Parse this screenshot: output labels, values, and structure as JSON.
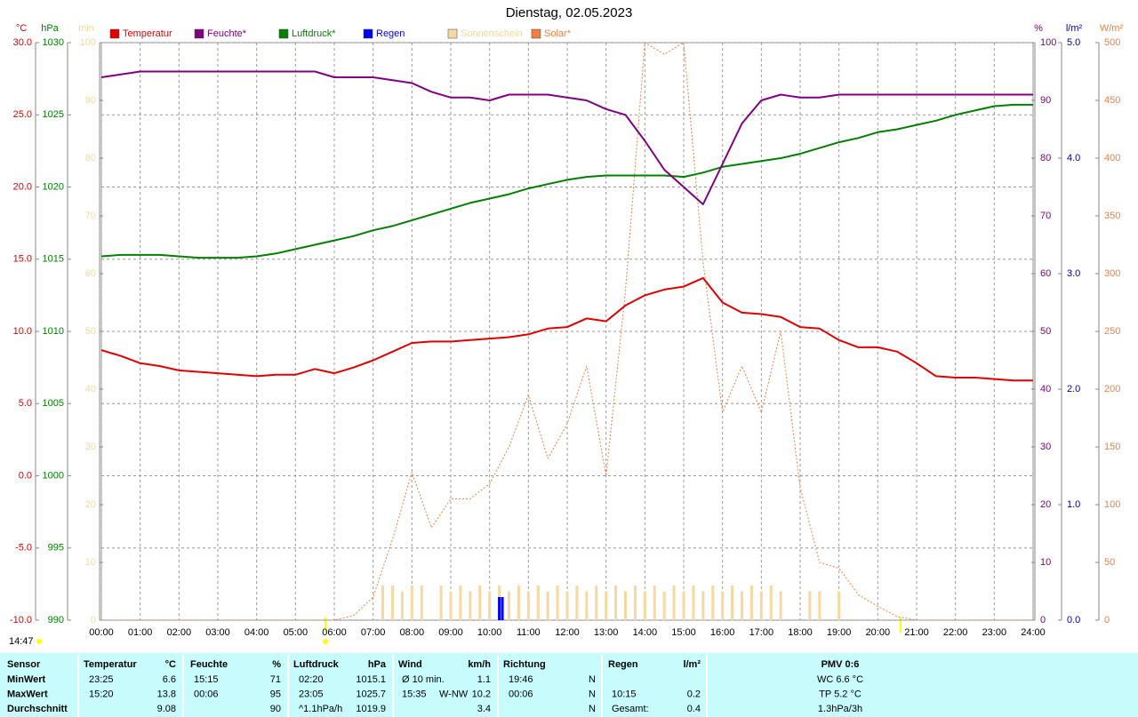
{
  "chart_data": {
    "type": "line",
    "title": "Dienstag, 02.05.2023",
    "x": [
      0,
      0.5,
      1,
      1.5,
      2,
      2.5,
      3,
      3.5,
      4,
      4.5,
      5,
      5.5,
      6,
      6.5,
      7,
      7.5,
      8,
      8.5,
      9,
      9.5,
      10,
      10.5,
      11,
      11.5,
      12,
      12.5,
      13,
      13.5,
      14,
      14.5,
      15,
      15.5,
      16,
      16.5,
      17,
      17.5,
      18,
      18.5,
      19,
      19.5,
      20,
      20.5,
      21,
      21.5,
      22,
      22.5,
      23,
      23.5,
      24
    ],
    "xlim": [
      0,
      24
    ],
    "xticks": [
      {
        "value": 0,
        "label": "00:00"
      },
      {
        "value": 1,
        "label": "01:00"
      },
      {
        "value": 2,
        "label": "02:00"
      },
      {
        "value": 3,
        "label": "03:00"
      },
      {
        "value": 4,
        "label": "04:00"
      },
      {
        "value": 5,
        "label": "05:00"
      },
      {
        "value": 6,
        "label": "06:00"
      },
      {
        "value": 7,
        "label": "07:00"
      },
      {
        "value": 8,
        "label": "08:00"
      },
      {
        "value": 9,
        "label": "09:00"
      },
      {
        "value": 10,
        "label": "10:00"
      },
      {
        "value": 11,
        "label": "11:00"
      },
      {
        "value": 12,
        "label": "12:00"
      },
      {
        "value": 13,
        "label": "13:00"
      },
      {
        "value": 14,
        "label": "14:00"
      },
      {
        "value": 15,
        "label": "15:00"
      },
      {
        "value": 16,
        "label": "16:00"
      },
      {
        "value": 17,
        "label": "17:00"
      },
      {
        "value": 18,
        "label": "18:00"
      },
      {
        "value": 19,
        "label": "19:00"
      },
      {
        "value": 20,
        "label": "20:00"
      },
      {
        "value": 21,
        "label": "21:00"
      },
      {
        "value": 22,
        "label": "22:00"
      },
      {
        "value": 23,
        "label": "23:00"
      },
      {
        "value": 24,
        "label": "24:00"
      }
    ],
    "grid": true,
    "axes": [
      {
        "label": "°C",
        "side": "left",
        "color": "#e00000",
        "lim": [
          -10,
          30
        ],
        "ticks": [
          {
            "value": -10,
            "label": "-10.0"
          },
          {
            "value": -5,
            "label": "-5.0"
          },
          {
            "value": 0,
            "label": "0.0"
          },
          {
            "value": 5,
            "label": "5.0"
          },
          {
            "value": 10,
            "label": "10.0"
          },
          {
            "value": 15,
            "label": "15.0"
          },
          {
            "value": 20,
            "label": "20.0"
          },
          {
            "value": 25,
            "label": "25.0"
          },
          {
            "value": 30,
            "label": "30.0"
          }
        ]
      },
      {
        "label": "hPa",
        "side": "left",
        "color": "#008000",
        "lim": [
          990,
          1030
        ],
        "ticks": [
          990,
          995,
          1000,
          1005,
          1010,
          1015,
          1020,
          1025,
          1030
        ]
      },
      {
        "label": "min",
        "side": "left",
        "color": "#f0d8a0",
        "lim": [
          0,
          100
        ],
        "ticks": [
          0,
          10,
          20,
          30,
          40,
          50,
          60,
          70,
          80,
          90,
          100
        ]
      },
      {
        "label": "%",
        "side": "right",
        "color": "#800080",
        "lim": [
          0,
          100
        ],
        "ticks": [
          0,
          10,
          20,
          30,
          40,
          50,
          60,
          70,
          80,
          90,
          100
        ]
      },
      {
        "label": "l/m²",
        "side": "right",
        "color": "#0000a0",
        "lim": [
          0,
          5
        ],
        "ticks": [
          {
            "value": 0,
            "label": "0.0"
          },
          {
            "value": 1,
            "label": "1.0"
          },
          {
            "value": 2,
            "label": "2.0"
          },
          {
            "value": 3,
            "label": "3.0"
          },
          {
            "value": 4,
            "label": "4.0"
          },
          {
            "value": 5,
            "label": "5.0"
          }
        ]
      },
      {
        "label": "W/m²",
        "side": "right",
        "color": "#f08040",
        "lim": [
          0,
          500
        ],
        "ticks": [
          0,
          50,
          100,
          150,
          200,
          250,
          300,
          350,
          400,
          450,
          500
        ]
      }
    ],
    "series": [
      {
        "name": "Temperatur",
        "color": "#e00000",
        "type": "line",
        "axis": 0,
        "values": [
          8.7,
          8.3,
          7.8,
          7.6,
          7.3,
          7.2,
          7.1,
          7.0,
          6.9,
          7.0,
          7.0,
          7.4,
          7.1,
          7.5,
          8.0,
          8.6,
          9.2,
          9.3,
          9.3,
          9.4,
          9.5,
          9.6,
          9.8,
          10.2,
          10.3,
          10.9,
          10.7,
          11.8,
          12.5,
          12.9,
          13.1,
          13.7,
          12.0,
          11.3,
          11.2,
          11.0,
          10.3,
          10.2,
          9.4,
          8.9,
          8.9,
          8.6,
          7.8,
          6.9,
          6.8,
          6.8,
          6.7,
          6.6,
          6.6
        ]
      },
      {
        "name": "Feuchte*",
        "color": "#800080",
        "type": "line",
        "axis": 3,
        "values": [
          94,
          94.5,
          95,
          95,
          95,
          95,
          95,
          95,
          95,
          95,
          95,
          95,
          94,
          94,
          94,
          93.5,
          93,
          91.5,
          90.5,
          90.5,
          90,
          91,
          91,
          91,
          90.5,
          90,
          88.5,
          87.5,
          83,
          78,
          75,
          72,
          79,
          86,
          90,
          91,
          90.5,
          90.5,
          91,
          91,
          91,
          91,
          91,
          91,
          91,
          91,
          91,
          91,
          91
        ]
      },
      {
        "name": "Luftdruck*",
        "color": "#008000",
        "type": "line",
        "axis": 1,
        "values": [
          1015.2,
          1015.3,
          1015.3,
          1015.3,
          1015.2,
          1015.1,
          1015.1,
          1015.1,
          1015.2,
          1015.4,
          1015.7,
          1016.0,
          1016.3,
          1016.6,
          1017.0,
          1017.3,
          1017.7,
          1018.1,
          1018.5,
          1018.9,
          1019.2,
          1019.5,
          1019.9,
          1020.2,
          1020.5,
          1020.7,
          1020.8,
          1020.8,
          1020.8,
          1020.8,
          1020.7,
          1021.0,
          1021.4,
          1021.6,
          1021.8,
          1022.0,
          1022.3,
          1022.7,
          1023.1,
          1023.4,
          1023.8,
          1024.0,
          1024.3,
          1024.6,
          1025.0,
          1025.3,
          1025.6,
          1025.7,
          1025.7
        ]
      },
      {
        "name": "Regen",
        "color": "#0000ff",
        "type": "bar",
        "axis": 4,
        "x": [
          10.25,
          10.33
        ],
        "values": [
          0.2,
          0.2
        ]
      },
      {
        "name": "Sonnenschein",
        "color": "#f8d8a0",
        "type": "bar",
        "axis": 2,
        "x": [
          7.25,
          7.5,
          7.75,
          8,
          8.25,
          8.5,
          8.75,
          9,
          9.25,
          9.5,
          9.75,
          10,
          10.25,
          10.5,
          10.75,
          11,
          11.25,
          11.5,
          11.75,
          12,
          12.25,
          12.5,
          12.75,
          13,
          13.25,
          13.5,
          13.75,
          14,
          14.25,
          14.5,
          14.75,
          15,
          15.25,
          15.5,
          15.75,
          16,
          16.25,
          16.5,
          16.75,
          17,
          17.25,
          17.5,
          17.75,
          18,
          18.25,
          18.5,
          18.75,
          19
        ],
        "values": [
          6,
          6,
          5,
          6,
          6,
          0,
          6,
          5,
          6,
          5,
          6,
          5,
          6,
          5,
          6,
          5,
          6,
          5,
          6,
          5,
          6,
          5,
          6,
          5,
          6,
          5,
          6,
          5,
          6,
          5,
          6,
          5,
          6,
          5,
          6,
          5,
          6,
          5,
          6,
          5,
          6,
          5,
          0,
          0,
          5,
          5,
          0,
          5
        ]
      },
      {
        "name": "Solar*",
        "color": "#f08040",
        "type": "line",
        "dashed": true,
        "axis": 5,
        "values": [
          0,
          0,
          0,
          0,
          0,
          0,
          0,
          0,
          0,
          0,
          0,
          0,
          0,
          4,
          20,
          70,
          128,
          80,
          105,
          105,
          118,
          150,
          195,
          140,
          170,
          220,
          125,
          285,
          500,
          490,
          500,
          310,
          180,
          220,
          180,
          250,
          115,
          50,
          45,
          22,
          12,
          3,
          0,
          0,
          0,
          0,
          0,
          0,
          0
        ]
      }
    ]
  },
  "footer": {
    "timestamp": "14:47"
  },
  "table": {
    "header": [
      "Sensor",
      "Temperatur",
      "°C",
      "Feuchte",
      "%",
      "Luftdruck",
      "hPa",
      "Wind",
      "km/h",
      "Richtung",
      "Regen",
      "l/m²",
      "PMV 0:6"
    ],
    "rows": [
      {
        "label": "MinWert",
        "temp_time": "23:25",
        "temp": "6.6",
        "hum_time": "15:15",
        "hum": "71",
        "press_time": "02:20",
        "press": "1015.1",
        "wind_label": "Ø 10 min.",
        "wind": "1.1",
        "dir_time": "19:46",
        "dir": "N",
        "pmv": "WC 6.6 °C"
      },
      {
        "label": "MaxWert",
        "temp_time": "15:20",
        "temp": "13.8",
        "hum_time": "00:06",
        "hum": "95",
        "press_time": "23:05",
        "press": "1025.7",
        "wind_label": "15:35",
        "wind_dir": "W-NW",
        "wind": "10.2",
        "dir_time": "00:06",
        "dir": "N",
        "rain_label": "10:15",
        "rain": "0.2",
        "pmv": "TP 5.2 °C"
      },
      {
        "label": "Durchschnitt",
        "temp": "9.08",
        "hum": "90",
        "press_time": "^1.1hPa/h",
        "press": "1019.9",
        "wind": "3.4",
        "dir": "N",
        "rain_label": "Gesamt:",
        "rain": "0.4",
        "pmv": "1.3hPa/3h"
      }
    ]
  }
}
